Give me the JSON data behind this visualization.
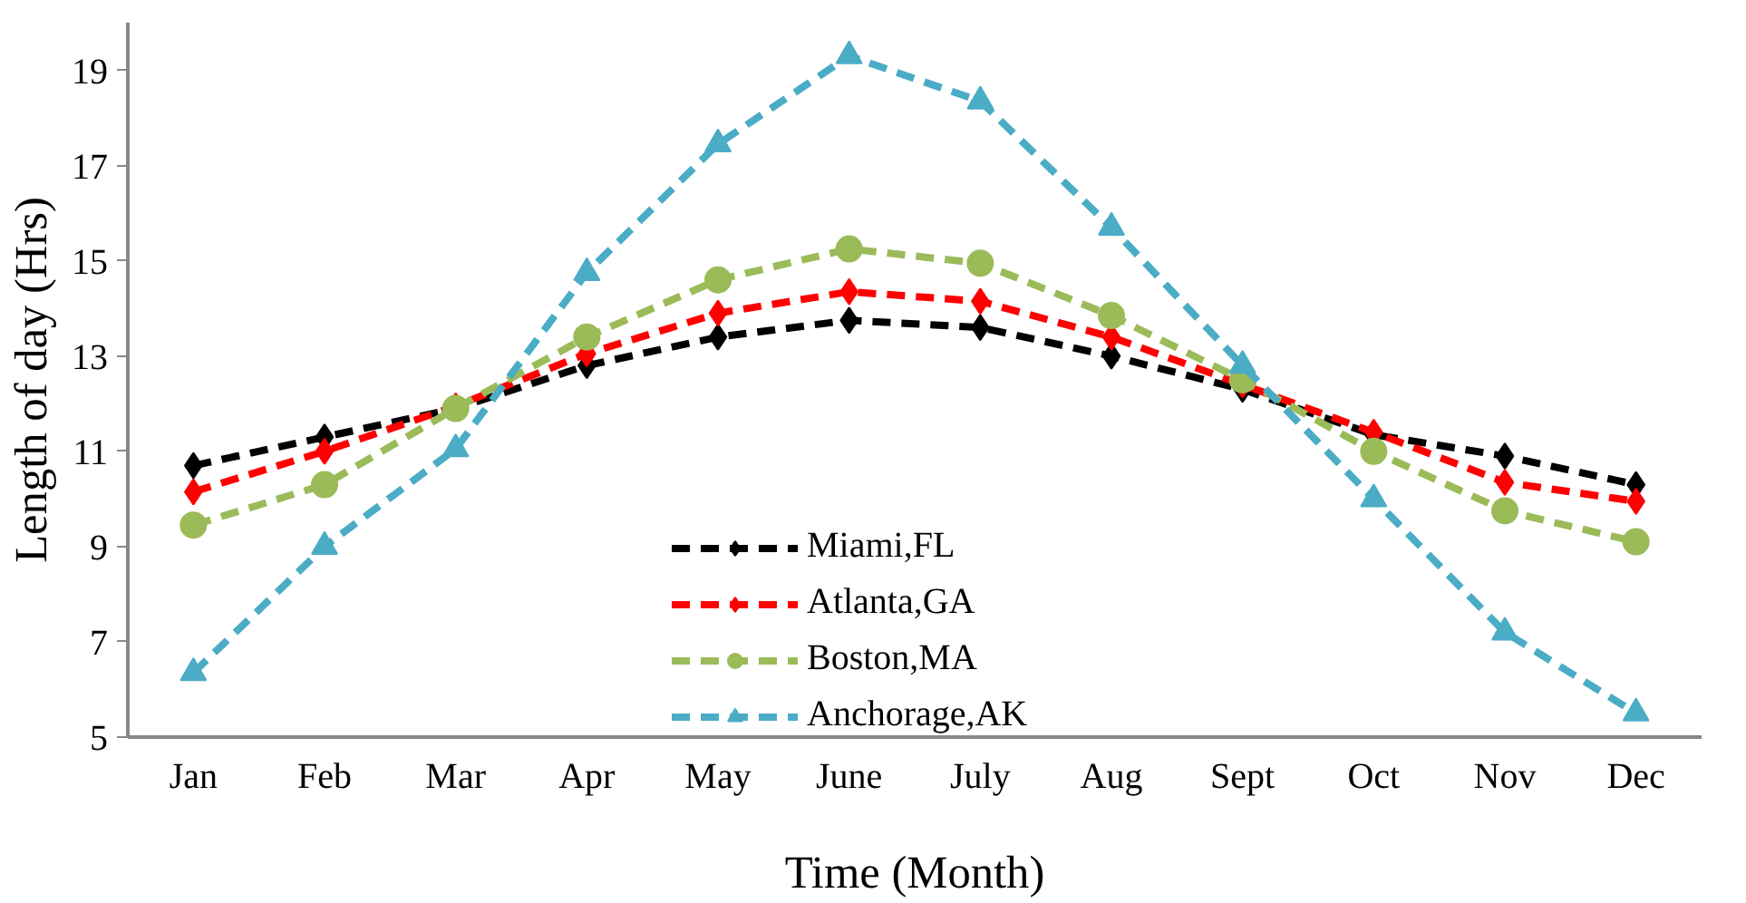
{
  "chart_data": {
    "type": "line",
    "xlabel": "Time (Month)",
    "ylabel": "Length of day (Hrs)",
    "categories": [
      "Jan",
      "Feb",
      "Mar",
      "Apr",
      "May",
      "June",
      "July",
      "Aug",
      "Sept",
      "Oct",
      "Nov",
      "Dec"
    ],
    "ylim": [
      5,
      20
    ],
    "yticks": [
      5,
      7,
      9,
      11,
      13,
      15,
      17,
      19
    ],
    "grid": false,
    "legend": "bottom",
    "line_style": "dashed",
    "series": [
      {
        "name": "Miami,FL",
        "color": "#000000",
        "marker": "diamond",
        "values": [
          10.7,
          11.3,
          11.9,
          12.8,
          13.4,
          13.75,
          13.6,
          13.0,
          12.3,
          11.35,
          10.9,
          10.3
        ]
      },
      {
        "name": "Atlanta,GA",
        "color": "#ff0000",
        "marker": "diamond",
        "values": [
          10.15,
          11.0,
          11.95,
          13.05,
          13.9,
          14.35,
          14.15,
          13.4,
          12.4,
          11.4,
          10.35,
          9.95
        ]
      },
      {
        "name": "Boston,MA",
        "color": "#9bbb59",
        "marker": "circle",
        "values": [
          9.45,
          10.3,
          11.9,
          13.4,
          14.6,
          15.25,
          14.95,
          13.85,
          12.5,
          11.0,
          9.75,
          9.1
        ]
      },
      {
        "name": "Anchorage,AK",
        "color": "#4bacc6",
        "marker": "triangle",
        "values": [
          6.35,
          9.0,
          11.05,
          14.75,
          17.45,
          19.3,
          18.35,
          15.7,
          12.8,
          10.0,
          7.2,
          5.5
        ]
      }
    ]
  }
}
